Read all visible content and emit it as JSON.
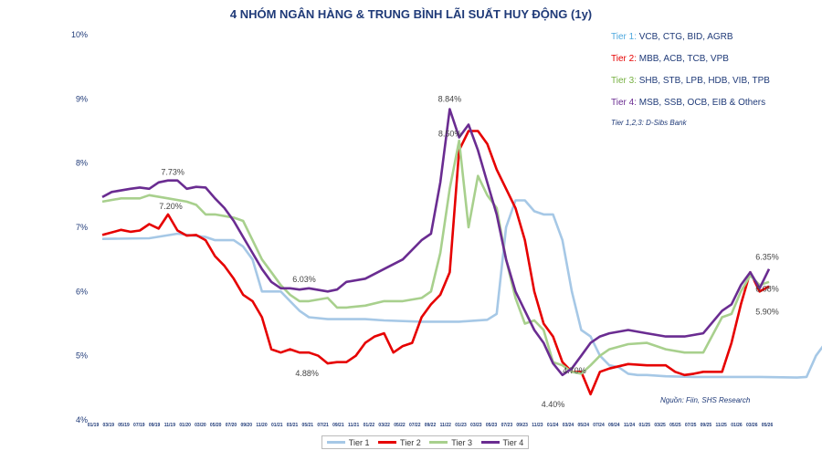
{
  "chart_data": {
    "type": "line",
    "title": "4 NHÓM NGÂN HÀNG & TRUNG BÌNH LÃI SUẤT HUY ĐỘNG (1y)",
    "ylim": [
      4,
      10
    ],
    "yticks": [
      "4%",
      "5%",
      "6%",
      "7%",
      "8%",
      "9%",
      "10%"
    ],
    "xticks": [
      "01/19",
      "03/19",
      "05/19",
      "07/19",
      "09/19",
      "11/19",
      "01/20",
      "03/20",
      "05/20",
      "07/20",
      "09/20",
      "11/20",
      "01/21",
      "03/21",
      "05/21",
      "07/21",
      "09/21",
      "11/21",
      "01/22",
      "03/22",
      "05/22",
      "07/22",
      "09/22",
      "11/22",
      "01/23",
      "03/23",
      "05/23",
      "07/23",
      "09/23",
      "11/23",
      "01/24",
      "03/24",
      "05/24",
      "07/24",
      "09/24",
      "11/24",
      "01/25",
      "03/25",
      "05/25",
      "07/25",
      "09/25",
      "11/25",
      "01/26",
      "03/26",
      "05/26"
    ],
    "legend": [
      {
        "prefix": "Tier 1: ",
        "rest": "VCB, CTG, BID, AGRB",
        "color": "#4ea8de"
      },
      {
        "prefix": "Tier 2: ",
        "rest": "MBB, ACB, TCB, VPB",
        "color": "#e60000"
      },
      {
        "prefix": "Tier 3: ",
        "rest": "SHB, STB, LPB, HDB, VIB, TPB",
        "color": "#76b041"
      },
      {
        "prefix": "Tier 4: ",
        "rest": "MSB, SSB, OCB, EIB & Others",
        "color": "#6a2c91"
      }
    ],
    "legend_note": "Tier 1,2,3: D-Sibs Bank",
    "source": "Nguồn: Fiin, SHS Research",
    "series": [
      {
        "name": "Tier 1",
        "color": "#a6c8e6",
        "points": [
          [
            0,
            6.82
          ],
          [
            5,
            6.83
          ],
          [
            8,
            6.9
          ],
          [
            11,
            6.85
          ],
          [
            12,
            6.8
          ],
          [
            14,
            6.8
          ],
          [
            15,
            6.7
          ],
          [
            16,
            6.5
          ],
          [
            17,
            6.0
          ],
          [
            19,
            6.0
          ],
          [
            20,
            5.85
          ],
          [
            21,
            5.7
          ],
          [
            22,
            5.6
          ],
          [
            24,
            5.57
          ],
          [
            26,
            5.57
          ],
          [
            28,
            5.57
          ],
          [
            30,
            5.55
          ],
          [
            34,
            5.53
          ],
          [
            38,
            5.53
          ],
          [
            41,
            5.56
          ],
          [
            42,
            5.65
          ],
          [
            43,
            7.0
          ],
          [
            44,
            7.42
          ],
          [
            45,
            7.42
          ],
          [
            46,
            7.25
          ],
          [
            47,
            7.2
          ],
          [
            48,
            7.2
          ],
          [
            49,
            6.8
          ],
          [
            50,
            6.0
          ],
          [
            51,
            5.4
          ],
          [
            52,
            5.3
          ],
          [
            53,
            5.0
          ],
          [
            54,
            4.85
          ],
          [
            55,
            4.82
          ],
          [
            56,
            4.72
          ],
          [
            57,
            4.7
          ],
          [
            58,
            4.7
          ],
          [
            60,
            4.68
          ],
          [
            63,
            4.67
          ],
          [
            70,
            4.67
          ],
          [
            74,
            4.66
          ],
          [
            75,
            4.67
          ],
          [
            76,
            5.0
          ],
          [
            77,
            5.2
          ],
          [
            78,
            5.22
          ],
          [
            79,
            5.25
          ],
          [
            79.5,
            5.9
          ],
          [
            80,
            5.95
          ],
          [
            81,
            5.88
          ],
          [
            82,
            5.9
          ]
        ]
      },
      {
        "name": "Tier 2",
        "color": "#e60000",
        "points": [
          [
            0,
            6.88
          ],
          [
            2,
            6.96
          ],
          [
            3,
            6.93
          ],
          [
            4,
            6.95
          ],
          [
            5,
            7.05
          ],
          [
            6,
            6.98
          ],
          [
            7,
            7.2
          ],
          [
            8,
            6.95
          ],
          [
            9,
            6.87
          ],
          [
            10,
            6.88
          ],
          [
            11,
            6.8
          ],
          [
            12,
            6.55
          ],
          [
            13,
            6.4
          ],
          [
            14,
            6.2
          ],
          [
            15,
            5.95
          ],
          [
            16,
            5.85
          ],
          [
            17,
            5.6
          ],
          [
            18,
            5.1
          ],
          [
            19,
            5.05
          ],
          [
            20,
            5.1
          ],
          [
            21,
            5.05
          ],
          [
            22,
            5.05
          ],
          [
            23,
            5.0
          ],
          [
            24,
            4.88
          ],
          [
            25,
            4.9
          ],
          [
            26,
            4.9
          ],
          [
            27,
            5.0
          ],
          [
            28,
            5.2
          ],
          [
            29,
            5.3
          ],
          [
            30,
            5.35
          ],
          [
            31,
            5.05
          ],
          [
            32,
            5.15
          ],
          [
            33,
            5.2
          ],
          [
            34,
            5.6
          ],
          [
            35,
            5.8
          ],
          [
            36,
            5.95
          ],
          [
            37,
            6.3
          ],
          [
            38,
            8.2
          ],
          [
            39,
            8.5
          ],
          [
            40,
            8.5
          ],
          [
            41,
            8.3
          ],
          [
            42,
            7.9
          ],
          [
            43,
            7.6
          ],
          [
            44,
            7.3
          ],
          [
            45,
            6.8
          ],
          [
            46,
            6.0
          ],
          [
            47,
            5.5
          ],
          [
            48,
            5.3
          ],
          [
            49,
            4.9
          ],
          [
            50,
            4.75
          ],
          [
            51,
            4.75
          ],
          [
            52,
            4.4
          ],
          [
            53,
            4.75
          ],
          [
            54,
            4.8
          ],
          [
            56,
            4.87
          ],
          [
            58,
            4.85
          ],
          [
            60,
            4.85
          ],
          [
            61,
            4.75
          ],
          [
            62,
            4.7
          ],
          [
            63,
            4.72
          ],
          [
            64,
            4.75
          ],
          [
            66,
            4.75
          ],
          [
            67,
            5.2
          ],
          [
            68,
            5.8
          ],
          [
            69,
            6.3
          ],
          [
            70,
            6.0
          ],
          [
            71,
            6.08
          ]
        ]
      },
      {
        "name": "Tier 3",
        "color": "#a8d08d",
        "points": [
          [
            0,
            7.4
          ],
          [
            2,
            7.45
          ],
          [
            4,
            7.45
          ],
          [
            5,
            7.5
          ],
          [
            7,
            7.45
          ],
          [
            9,
            7.4
          ],
          [
            10,
            7.35
          ],
          [
            11,
            7.2
          ],
          [
            12,
            7.2
          ],
          [
            14,
            7.15
          ],
          [
            15,
            7.1
          ],
          [
            16,
            6.8
          ],
          [
            17,
            6.5
          ],
          [
            18,
            6.3
          ],
          [
            19,
            6.1
          ],
          [
            20,
            5.95
          ],
          [
            21,
            5.85
          ],
          [
            22,
            5.85
          ],
          [
            24,
            5.9
          ],
          [
            25,
            5.75
          ],
          [
            26,
            5.75
          ],
          [
            28,
            5.78
          ],
          [
            30,
            5.85
          ],
          [
            32,
            5.85
          ],
          [
            34,
            5.9
          ],
          [
            35,
            6.0
          ],
          [
            36,
            6.6
          ],
          [
            37,
            7.6
          ],
          [
            38,
            8.35
          ],
          [
            39,
            7.0
          ],
          [
            40,
            7.8
          ],
          [
            41,
            7.5
          ],
          [
            42,
            7.3
          ],
          [
            43,
            6.5
          ],
          [
            44,
            5.9
          ],
          [
            45,
            5.5
          ],
          [
            46,
            5.55
          ],
          [
            47,
            5.4
          ],
          [
            48,
            4.9
          ],
          [
            49,
            4.85
          ],
          [
            50,
            4.75
          ],
          [
            51,
            4.72
          ],
          [
            52,
            4.85
          ],
          [
            53,
            5.0
          ],
          [
            54,
            5.1
          ],
          [
            56,
            5.18
          ],
          [
            58,
            5.2
          ],
          [
            60,
            5.1
          ],
          [
            62,
            5.05
          ],
          [
            64,
            5.05
          ],
          [
            66,
            5.6
          ],
          [
            67,
            5.65
          ],
          [
            68,
            6.0
          ],
          [
            69,
            6.25
          ],
          [
            70,
            6.1
          ],
          [
            71,
            6.15
          ]
        ]
      },
      {
        "name": "Tier 4",
        "color": "#6a2c91",
        "points": [
          [
            0,
            7.47
          ],
          [
            1,
            7.55
          ],
          [
            3,
            7.6
          ],
          [
            4,
            7.62
          ],
          [
            5,
            7.6
          ],
          [
            6,
            7.7
          ],
          [
            7,
            7.73
          ],
          [
            8,
            7.73
          ],
          [
            9,
            7.6
          ],
          [
            10,
            7.63
          ],
          [
            11,
            7.62
          ],
          [
            12,
            7.45
          ],
          [
            13,
            7.3
          ],
          [
            14,
            7.1
          ],
          [
            15,
            6.85
          ],
          [
            16,
            6.6
          ],
          [
            17,
            6.35
          ],
          [
            18,
            6.15
          ],
          [
            19,
            6.05
          ],
          [
            20,
            6.05
          ],
          [
            21,
            6.03
          ],
          [
            22,
            6.05
          ],
          [
            24,
            6.0
          ],
          [
            25,
            6.03
          ],
          [
            26,
            6.15
          ],
          [
            28,
            6.2
          ],
          [
            30,
            6.35
          ],
          [
            32,
            6.5
          ],
          [
            34,
            6.8
          ],
          [
            35,
            6.9
          ],
          [
            36,
            7.7
          ],
          [
            37,
            8.84
          ],
          [
            38,
            8.4
          ],
          [
            39,
            8.6
          ],
          [
            40,
            8.2
          ],
          [
            41,
            7.7
          ],
          [
            42,
            7.2
          ],
          [
            43,
            6.5
          ],
          [
            44,
            6.0
          ],
          [
            45,
            5.7
          ],
          [
            46,
            5.4
          ],
          [
            47,
            5.2
          ],
          [
            48,
            4.88
          ],
          [
            49,
            4.7
          ],
          [
            50,
            4.8
          ],
          [
            51,
            5.0
          ],
          [
            52,
            5.2
          ],
          [
            53,
            5.3
          ],
          [
            54,
            5.35
          ],
          [
            56,
            5.4
          ],
          [
            58,
            5.35
          ],
          [
            60,
            5.3
          ],
          [
            62,
            5.3
          ],
          [
            64,
            5.35
          ],
          [
            66,
            5.7
          ],
          [
            67,
            5.8
          ],
          [
            68,
            6.1
          ],
          [
            69,
            6.3
          ],
          [
            70,
            6.05
          ],
          [
            71,
            6.35
          ]
        ]
      }
    ],
    "annotations": [
      {
        "text": "7.73%",
        "x": 7.5,
        "y": 7.73,
        "series": "Tier 4"
      },
      {
        "text": "7.20%",
        "x": 7.3,
        "y": 7.2,
        "series": "Tier 2"
      },
      {
        "text": "6.03%",
        "x": 21.5,
        "y": 6.03,
        "series": "Tier 4"
      },
      {
        "text": "4.88%",
        "x": 21.8,
        "y": 4.88,
        "series": "Tier 2"
      },
      {
        "text": "8.84%",
        "x": 37.0,
        "y": 8.84,
        "series": "Tier 4"
      },
      {
        "text": "8.50%",
        "x": 37.6,
        "y": 8.5,
        "series": "Tier 2"
      },
      {
        "text": "4.70%",
        "x": 49.5,
        "y": 4.7,
        "series": "Tier 4"
      },
      {
        "text": "4.40%",
        "x": 48.0,
        "y": 4.4,
        "series": "Tier 2"
      },
      {
        "text": "6.35%",
        "x": 71.0,
        "y": 6.35,
        "series": "Tier 4"
      },
      {
        "text": "6.08%",
        "x": 71.0,
        "y": 6.08,
        "series": "Tier 2"
      },
      {
        "text": "5.90%",
        "x": 71.0,
        "y": 5.9,
        "series": "Tier 1"
      }
    ]
  }
}
